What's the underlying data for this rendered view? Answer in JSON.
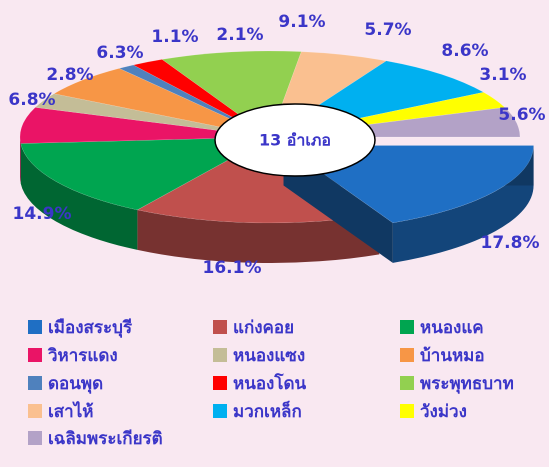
{
  "chart_data": {
    "type": "pie3d",
    "center_label": "13 อำเภอ",
    "categories": [
      "เมืองสระบุรี",
      "แก่งคอย",
      "หนองแค",
      "วิหารแดง",
      "หนองแซง",
      "บ้านหมอ",
      "ดอนพุด",
      "หนองโดน",
      "พระพุทธบาท",
      "เสาไห้",
      "มวกเหล็ก",
      "วังม่วง",
      "เฉลิมพระเกียรติ"
    ],
    "values": [
      17.8,
      16.1,
      14.9,
      6.8,
      2.8,
      6.3,
      1.1,
      2.1,
      9.1,
      5.7,
      8.6,
      3.1,
      5.6
    ],
    "value_labels": [
      "17.8%",
      "16.1%",
      "14.9%",
      "6.8%",
      "2.8%",
      "6.3%",
      "1.1%",
      "2.1%",
      "9.1%",
      "5.7%",
      "8.6%",
      "3.1%",
      "5.6%"
    ],
    "colors": [
      "#1f6fc4",
      "#c0504d",
      "#00a550",
      "#ea1466",
      "#c4bd97",
      "#f79646",
      "#4f81bd",
      "#ff0000",
      "#92d050",
      "#fac090",
      "#00b0f0",
      "#ffff00",
      "#b3a2c7"
    ],
    "exploded": [
      0
    ],
    "legend": "bottom"
  }
}
